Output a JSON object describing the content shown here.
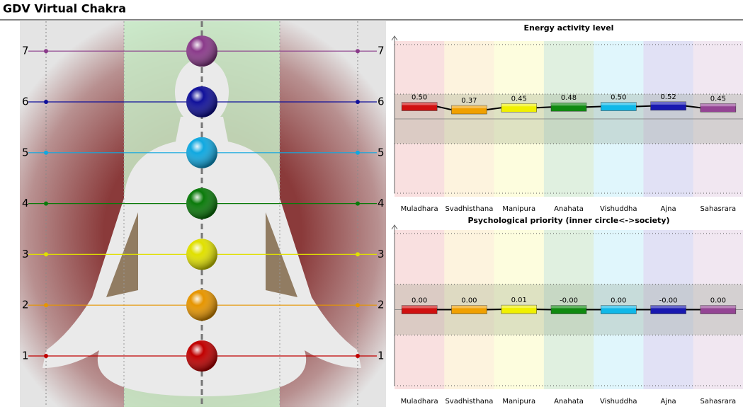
{
  "title": "GDV Virtual Chakra",
  "chakra_levels": {
    "labels": [
      1,
      2,
      3,
      4,
      5,
      6,
      7
    ],
    "colors": [
      "#c00000",
      "#e69500",
      "#e0e000",
      "#0a7a0a",
      "#10a8e0",
      "#10109a",
      "#8a3a8a"
    ]
  },
  "chart_data": [
    {
      "type": "bar",
      "title": "Energy activity level",
      "categories": [
        "Muladhara",
        "Svadhisthana",
        "Manipura",
        "Anahata",
        "Vishuddha",
        "Ajna",
        "Sahasrara"
      ],
      "values": [
        0.5,
        0.37,
        0.45,
        0.48,
        0.5,
        0.52,
        0.45
      ],
      "value_labels": [
        "0.50",
        "0.37",
        "0.45",
        "0.48",
        "0.50",
        "0.52",
        "0.45"
      ],
      "colors": [
        "#d01010",
        "#f0a000",
        "#f0f000",
        "#108a10",
        "#10b8e8",
        "#1818b0",
        "#944494"
      ],
      "ylim": [
        -3,
        3
      ],
      "yticks": [
        -3,
        -1,
        1,
        3
      ],
      "grid": true
    },
    {
      "type": "bar",
      "title": "Psychological priority (inner circle<->society)",
      "categories": [
        "Muladhara",
        "Svadhisthana",
        "Manipura",
        "Anahata",
        "Vishuddha",
        "Ajna",
        "Sahasrara"
      ],
      "values": [
        0,
        0,
        0.01,
        0,
        0,
        0,
        0
      ],
      "value_labels": [
        "0.00",
        "0.00",
        "0.01",
        "-0.00",
        "0.00",
        "-0.00",
        "0.00"
      ],
      "colors": [
        "#d01010",
        "#f0a000",
        "#f0f000",
        "#108a10",
        "#10b8e8",
        "#1818b0",
        "#944494"
      ],
      "ylim": [
        -3,
        3
      ],
      "yticks": [
        -3,
        -1,
        1,
        3
      ],
      "grid": true
    }
  ]
}
